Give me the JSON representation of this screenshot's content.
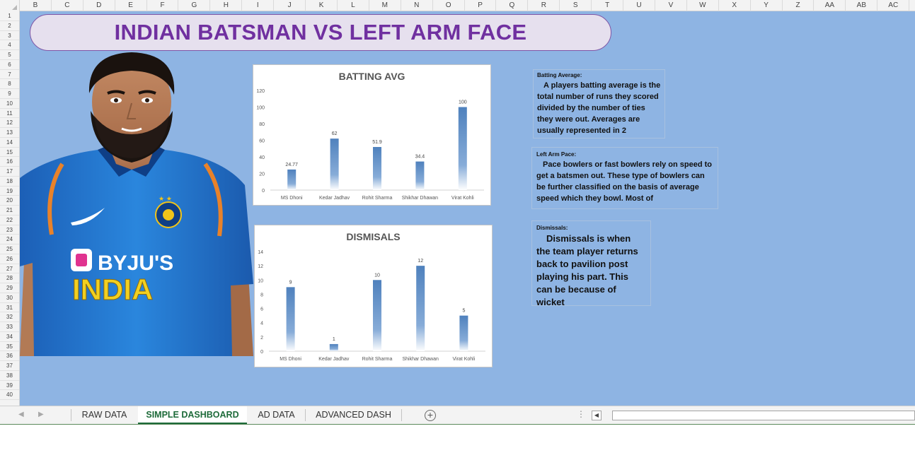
{
  "columns": [
    "B",
    "C",
    "D",
    "E",
    "F",
    "G",
    "H",
    "I",
    "J",
    "K",
    "L",
    "M",
    "N",
    "O",
    "P",
    "Q",
    "R",
    "S",
    "T",
    "U",
    "V",
    "W",
    "X",
    "Y",
    "Z",
    "AA",
    "AB",
    "AC"
  ],
  "rows": [
    "1",
    "2",
    "3",
    "4",
    "5",
    "6",
    "7",
    "8",
    "9",
    "10",
    "11",
    "12",
    "13",
    "14",
    "15",
    "16",
    "17",
    "18",
    "19",
    "20",
    "21",
    "22",
    "23",
    "24",
    "25",
    "26",
    "27",
    "28",
    "29",
    "30",
    "31",
    "32",
    "33",
    "34",
    "35",
    "36",
    "37",
    "38",
    "39",
    "40"
  ],
  "title": "INDIAN BATSMAN VS LEFT ARM FACE",
  "jersey": {
    "sponsor": "BYJU'S",
    "country": "INDIA"
  },
  "colors": {
    "sheet_bg": "#8eb4e3",
    "title_text": "#7030a0",
    "title_bg": "#e6e0ee",
    "bar": "#4f81bd",
    "active_tab": "#1e6b3a"
  },
  "chart_data": [
    {
      "type": "bar",
      "title": "BATTING AVG",
      "categories": [
        "MS Dhoni",
        "Kedar Jadhav",
        "Rohit Sharma",
        "Shikhar Dhawan",
        "Virat Kohli"
      ],
      "values": [
        24.77,
        62,
        51.9,
        34.4,
        100
      ],
      "data_labels": [
        "24.77",
        "62",
        "51.9",
        "34.4",
        "100"
      ],
      "yticks": [
        "0",
        "20",
        "40",
        "60",
        "80",
        "100",
        "120"
      ],
      "ylim": [
        0,
        120
      ],
      "grid": false,
      "legend": "none"
    },
    {
      "type": "bar",
      "title": "DISMISALS",
      "categories": [
        "MS Dhoni",
        "Kedar Jadhav",
        "Rohit Sharma",
        "Shikhar Dhawan",
        "Virat Kohli"
      ],
      "values": [
        9,
        1,
        10,
        12,
        5
      ],
      "data_labels": [
        "9",
        "1",
        "10",
        "12",
        "5"
      ],
      "yticks": [
        "0",
        "2",
        "4",
        "6",
        "8",
        "10",
        "12",
        "14"
      ],
      "ylim": [
        0,
        14
      ],
      "grid": false,
      "legend": "none"
    }
  ],
  "notes": {
    "batting": {
      "heading": "Batting Average:",
      "body": "A players batting average is the total number of runs they scored divided by the number of ties they were out. Averages are usually represented in 2"
    },
    "pace": {
      "heading": "Left Arm Pace:",
      "body": "Pace bowlers or fast bowlers rely on speed to get a batsmen out. These type of bowlers can be further classified on the basis of average speed which they bowl. Most of"
    },
    "dismissals": {
      "heading": "Dismissals:",
      "body": "Dismissals is when the team player returns back to pavilion post playing his part. This can be because of wicket"
    }
  },
  "tabs": [
    "RAW DATA",
    "SIMPLE DASHBOARD",
    "AD DATA",
    "ADVANCED DASH"
  ],
  "active_tab": "SIMPLE DASHBOARD",
  "icons": {
    "prev_sheet": "triangle-left-icon",
    "next_sheet": "triangle-right-icon",
    "add_sheet": "plus-circle-icon",
    "scroll_left": "scroll-left-icon",
    "options": "vertical-dots-icon"
  }
}
